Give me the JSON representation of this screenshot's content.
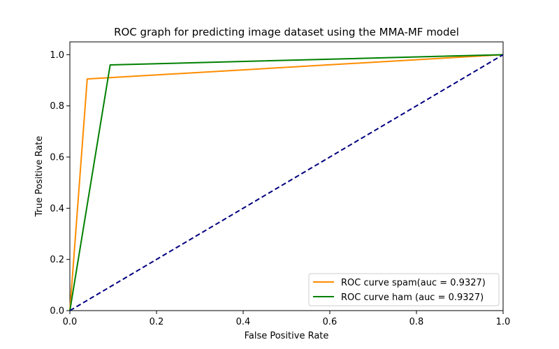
{
  "chart_data": {
    "type": "line",
    "title": "ROC graph for predicting image dataset using the MMA-MF model",
    "xlabel": "False Positive Rate",
    "ylabel": "True Positive Rate",
    "xlim": [
      0.0,
      1.0
    ],
    "ylim": [
      0.0,
      1.05
    ],
    "xticks": [
      0.0,
      0.2,
      0.4,
      0.6,
      0.8,
      1.0
    ],
    "yticks": [
      0.0,
      0.2,
      0.4,
      0.6,
      0.8,
      1.0
    ],
    "xtick_labels": [
      "0.0",
      "0.2",
      "0.4",
      "0.6",
      "0.8",
      "1.0"
    ],
    "ytick_labels": [
      "0.0",
      "0.2",
      "0.4",
      "0.6",
      "0.8",
      "1.0"
    ],
    "grid": false,
    "legend_position": "lower-right",
    "series": [
      {
        "name": "ROC curve spam(auc = 0.9327)",
        "color": "#ff8c00",
        "style": "solid",
        "x": [
          0.0,
          0.04,
          1.0
        ],
        "y": [
          0.0,
          0.905,
          1.0
        ]
      },
      {
        "name": "ROC curve ham (auc = 0.9327)",
        "color": "#008000",
        "style": "solid",
        "x": [
          0.0,
          0.093,
          1.0
        ],
        "y": [
          0.0,
          0.96,
          1.0
        ]
      },
      {
        "color": "#000080",
        "style": "dashed",
        "x": [
          0.0,
          1.0
        ],
        "y": [
          0.0,
          1.0
        ]
      }
    ]
  }
}
